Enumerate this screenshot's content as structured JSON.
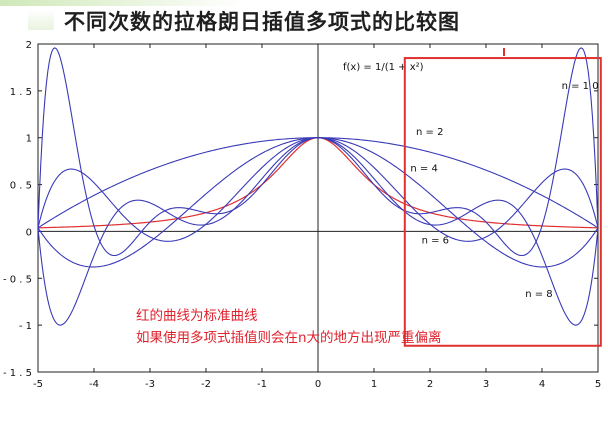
{
  "slide": {
    "title": "不同次数的拉格朗日插值多项式的比较图"
  },
  "notes": [
    "红的曲线为标准曲线",
    "如果使用多项式插值则会在n大的地方出现严重偏离"
  ],
  "colors": {
    "standard_curve": "#e03030",
    "interp_curves": "#3a3ab8",
    "axes": "#222222",
    "highlight_box": "#e03030",
    "notes_text": "#e0212c"
  },
  "chart_data": {
    "type": "line",
    "title": "",
    "function_label": "f(x) = 1/(1 + x²)",
    "xlim": [
      -5,
      5
    ],
    "ylim": [
      -1.5,
      2
    ],
    "x_ticks": [
      -5,
      -4,
      -3,
      -2,
      -1,
      0,
      1,
      2,
      3,
      4,
      5
    ],
    "y_ticks": [
      -1.5,
      -1,
      -0.5,
      0,
      0.5,
      1,
      1.5,
      2
    ],
    "x_tick_labels": [
      "-5",
      "-4",
      "-3",
      "-2",
      "-1",
      "0",
      "1",
      "2",
      "3",
      "4",
      "5"
    ],
    "y_tick_labels": [
      "- 1 . 5",
      "- 1",
      "- 0 . 5",
      "0",
      "0 . 5",
      "1",
      "1 . 5",
      "2"
    ],
    "grid": false,
    "highlight_region": {
      "x_range": [
        1.55,
        5.05
      ],
      "y_range": [
        -1.22,
        1.85
      ]
    },
    "series": [
      {
        "name": "f(x) = 1/(1 + x²)",
        "kind": "function",
        "color": "#e03030"
      },
      {
        "name": "n = 2",
        "kind": "lagrange",
        "degree": 2,
        "color": "#3a3ab8"
      },
      {
        "name": "n = 4",
        "kind": "lagrange",
        "degree": 4,
        "color": "#3a3ab8"
      },
      {
        "name": "n = 6",
        "kind": "lagrange",
        "degree": 6,
        "color": "#3a3ab8"
      },
      {
        "name": "n = 8",
        "kind": "lagrange",
        "degree": 8,
        "color": "#3a3ab8"
      },
      {
        "name": "n = 10",
        "kind": "lagrange",
        "degree": 10,
        "color": "#3a3ab8"
      }
    ],
    "annotations": [
      {
        "text": "n = 1 0",
        "series": "n = 10",
        "x": 4.35,
        "y": 1.52
      },
      {
        "text": "n = 2",
        "series": "n = 2",
        "x": 1.75,
        "y": 1.03
      },
      {
        "text": "n = 4",
        "series": "n = 4",
        "x": 1.65,
        "y": 0.64
      },
      {
        "text": "n = 6",
        "series": "n = 6",
        "x": 1.85,
        "y": -0.13
      },
      {
        "text": "n = 8",
        "series": "n = 8",
        "x": 3.7,
        "y": -0.7
      }
    ]
  }
}
